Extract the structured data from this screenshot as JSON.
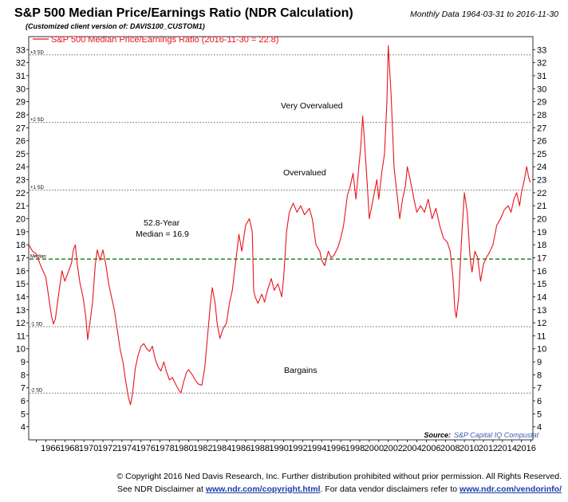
{
  "header": {
    "title": "S&P 500 Median Price/Earnings Ratio (NDR Calculation)",
    "subtitle": "(Customized client version of: DAVIS100_CUSTOM1)",
    "date_range": "Monthly Data 1964-03-31 to 2016-11-30"
  },
  "legend": {
    "label": "S&P 500 Median Price/Earnings Ratio (2016-11-30 = 22.8)"
  },
  "annotations": {
    "very_overvalued": "Very Overvalued",
    "overvalued": "Overvalued",
    "median_line1": "52.8-Year",
    "median_line2": "Median = 16.9",
    "bargains": "Bargains"
  },
  "source": {
    "label": "Source:",
    "value": "S&P Capital IQ Compustat"
  },
  "footer": {
    "line1": "© Copyright 2016 Ned Davis Research, Inc. Further distribution prohibited without prior permission. All Rights Reserved.",
    "line2_prefix": "See NDR Disclaimer at ",
    "line2_link1": "www.ndr.com/copyright.html",
    "line2_mid": ". For data vendor disclaimers refer to ",
    "line2_link2": "www.ndr.com/vendorinfo/"
  },
  "colors": {
    "series": "#e8141c",
    "median": "#1f8a1f",
    "sd_lines": "#333333",
    "source_value": "#3a5fb0"
  },
  "chart_data": {
    "type": "line",
    "title": "S&P 500 Median Price/Earnings Ratio (NDR Calculation)",
    "x_range": [
      1964.2,
      2017.2
    ],
    "ylim": [
      3,
      34
    ],
    "y_ticks": [
      4,
      5,
      6,
      7,
      8,
      9,
      10,
      11,
      12,
      13,
      14,
      15,
      16,
      17,
      18,
      19,
      20,
      21,
      22,
      23,
      24,
      25,
      26,
      27,
      28,
      29,
      30,
      31,
      32,
      33
    ],
    "x_tick_labels": [
      "1966",
      "1968",
      "1970",
      "1972",
      "1974",
      "1976",
      "1978",
      "1980",
      "1982",
      "1984",
      "1986",
      "1988",
      "1990",
      "1992",
      "1994",
      "1996",
      "1998",
      "2000",
      "2002",
      "2004",
      "2006",
      "2008",
      "2010",
      "2012",
      "2014",
      "2016"
    ],
    "grid": false,
    "legend_position": "top-left",
    "reference_lines": [
      {
        "label": "+3 SD",
        "value": 32.6,
        "style": "dotted"
      },
      {
        "label": "+2 SD",
        "value": 27.4,
        "style": "dotted"
      },
      {
        "label": "+1 SD",
        "value": 22.2,
        "style": "dotted"
      },
      {
        "label": "Median",
        "value": 16.9,
        "style": "dashed"
      },
      {
        "label": "-1 SD",
        "value": 11.7,
        "style": "dotted"
      },
      {
        "label": "-2 SD",
        "value": 6.6,
        "style": "dotted"
      }
    ],
    "series": [
      {
        "name": "S&P 500 Median Price/Earnings Ratio (2016-11-30 = 22.8)",
        "points": [
          [
            1964.2,
            18.0
          ],
          [
            1964.6,
            17.5
          ],
          [
            1965.0,
            17.3
          ],
          [
            1965.4,
            16.5
          ],
          [
            1965.7,
            16.0
          ],
          [
            1966.0,
            15.5
          ],
          [
            1966.3,
            14.0
          ],
          [
            1966.6,
            12.5
          ],
          [
            1966.8,
            11.9
          ],
          [
            1967.0,
            12.3
          ],
          [
            1967.4,
            14.5
          ],
          [
            1967.7,
            16.0
          ],
          [
            1968.0,
            15.2
          ],
          [
            1968.3,
            15.8
          ],
          [
            1968.7,
            16.6
          ],
          [
            1968.9,
            17.6
          ],
          [
            1969.1,
            18.0
          ],
          [
            1969.3,
            16.5
          ],
          [
            1969.6,
            15.0
          ],
          [
            1969.9,
            14.0
          ],
          [
            1970.2,
            12.5
          ],
          [
            1970.4,
            10.7
          ],
          [
            1970.6,
            11.8
          ],
          [
            1970.9,
            13.5
          ],
          [
            1971.2,
            16.5
          ],
          [
            1971.4,
            17.6
          ],
          [
            1971.7,
            16.8
          ],
          [
            1972.0,
            17.6
          ],
          [
            1972.3,
            16.5
          ],
          [
            1972.6,
            15.0
          ],
          [
            1972.9,
            14.0
          ],
          [
            1973.2,
            13.0
          ],
          [
            1973.5,
            11.5
          ],
          [
            1973.8,
            10.0
          ],
          [
            1974.1,
            9.0
          ],
          [
            1974.4,
            7.5
          ],
          [
            1974.7,
            6.2
          ],
          [
            1974.9,
            5.7
          ],
          [
            1975.1,
            6.5
          ],
          [
            1975.4,
            8.5
          ],
          [
            1975.7,
            9.5
          ],
          [
            1976.0,
            10.2
          ],
          [
            1976.3,
            10.4
          ],
          [
            1976.6,
            10.0
          ],
          [
            1976.9,
            9.8
          ],
          [
            1977.2,
            10.2
          ],
          [
            1977.5,
            9.2
          ],
          [
            1977.8,
            8.6
          ],
          [
            1978.1,
            8.3
          ],
          [
            1978.4,
            9.0
          ],
          [
            1978.7,
            8.2
          ],
          [
            1979.0,
            7.6
          ],
          [
            1979.3,
            7.8
          ],
          [
            1979.7,
            7.2
          ],
          [
            1980.0,
            6.8
          ],
          [
            1980.2,
            6.6
          ],
          [
            1980.5,
            7.5
          ],
          [
            1980.8,
            8.2
          ],
          [
            1981.0,
            8.4
          ],
          [
            1981.4,
            8.0
          ],
          [
            1981.7,
            7.6
          ],
          [
            1982.0,
            7.3
          ],
          [
            1982.4,
            7.2
          ],
          [
            1982.7,
            8.5
          ],
          [
            1983.0,
            11.0
          ],
          [
            1983.3,
            13.5
          ],
          [
            1983.5,
            14.7
          ],
          [
            1983.8,
            13.5
          ],
          [
            1984.0,
            12.0
          ],
          [
            1984.3,
            10.8
          ],
          [
            1984.6,
            11.5
          ],
          [
            1985.0,
            12.0
          ],
          [
            1985.3,
            13.5
          ],
          [
            1985.6,
            14.5
          ],
          [
            1986.0,
            17.0
          ],
          [
            1986.3,
            18.8
          ],
          [
            1986.6,
            17.5
          ],
          [
            1987.0,
            19.5
          ],
          [
            1987.4,
            20.0
          ],
          [
            1987.7,
            19.0
          ],
          [
            1987.85,
            14.5
          ],
          [
            1988.0,
            14.0
          ],
          [
            1988.3,
            13.5
          ],
          [
            1988.7,
            14.2
          ],
          [
            1989.0,
            13.6
          ],
          [
            1989.3,
            14.5
          ],
          [
            1989.7,
            15.4
          ],
          [
            1990.0,
            14.5
          ],
          [
            1990.4,
            15.0
          ],
          [
            1990.8,
            14.0
          ],
          [
            1991.0,
            15.5
          ],
          [
            1991.3,
            19.0
          ],
          [
            1991.6,
            20.5
          ],
          [
            1992.0,
            21.2
          ],
          [
            1992.4,
            20.5
          ],
          [
            1992.8,
            21.0
          ],
          [
            1993.2,
            20.3
          ],
          [
            1993.7,
            20.8
          ],
          [
            1994.0,
            20.0
          ],
          [
            1994.4,
            18.0
          ],
          [
            1994.8,
            17.5
          ],
          [
            1995.0,
            16.8
          ],
          [
            1995.3,
            16.4
          ],
          [
            1995.7,
            17.5
          ],
          [
            1996.0,
            17.0
          ],
          [
            1996.3,
            17.2
          ],
          [
            1996.7,
            17.8
          ],
          [
            1997.0,
            18.5
          ],
          [
            1997.3,
            19.5
          ],
          [
            1997.7,
            21.8
          ],
          [
            1998.0,
            22.5
          ],
          [
            1998.3,
            23.5
          ],
          [
            1998.6,
            21.5
          ],
          [
            1998.9,
            24.0
          ],
          [
            1999.1,
            25.5
          ],
          [
            1999.3,
            27.9
          ],
          [
            1999.5,
            26.0
          ],
          [
            1999.8,
            22.5
          ],
          [
            2000.0,
            20.0
          ],
          [
            2000.4,
            21.5
          ],
          [
            2000.8,
            23.0
          ],
          [
            2001.0,
            21.5
          ],
          [
            2001.3,
            23.5
          ],
          [
            2001.6,
            25.0
          ],
          [
            2001.85,
            29.0
          ],
          [
            2002.0,
            33.3
          ],
          [
            2002.3,
            29.5
          ],
          [
            2002.6,
            24.0
          ],
          [
            2002.9,
            22.0
          ],
          [
            2003.2,
            20.0
          ],
          [
            2003.5,
            21.5
          ],
          [
            2003.8,
            22.5
          ],
          [
            2004.0,
            24.0
          ],
          [
            2004.3,
            23.0
          ],
          [
            2004.7,
            21.5
          ],
          [
            2005.0,
            20.5
          ],
          [
            2005.4,
            21.0
          ],
          [
            2005.8,
            20.5
          ],
          [
            2006.2,
            21.5
          ],
          [
            2006.6,
            20.0
          ],
          [
            2007.0,
            20.8
          ],
          [
            2007.4,
            19.5
          ],
          [
            2007.8,
            18.5
          ],
          [
            2008.2,
            18.2
          ],
          [
            2008.5,
            17.5
          ],
          [
            2008.8,
            15.5
          ],
          [
            2009.0,
            13.0
          ],
          [
            2009.15,
            12.4
          ],
          [
            2009.4,
            14.0
          ],
          [
            2009.7,
            18.5
          ],
          [
            2010.0,
            22.0
          ],
          [
            2010.3,
            20.5
          ],
          [
            2010.6,
            17.0
          ],
          [
            2010.8,
            15.9
          ],
          [
            2011.1,
            17.5
          ],
          [
            2011.4,
            17.0
          ],
          [
            2011.7,
            15.2
          ],
          [
            2012.0,
            16.5
          ],
          [
            2012.3,
            17.0
          ],
          [
            2012.7,
            17.5
          ],
          [
            2013.0,
            18.0
          ],
          [
            2013.4,
            19.5
          ],
          [
            2013.8,
            20.0
          ],
          [
            2014.2,
            20.7
          ],
          [
            2014.6,
            21.0
          ],
          [
            2014.9,
            20.5
          ],
          [
            2015.2,
            21.5
          ],
          [
            2015.5,
            22.0
          ],
          [
            2015.8,
            21.0
          ],
          [
            2016.0,
            22.0
          ],
          [
            2016.3,
            23.0
          ],
          [
            2016.55,
            24.0
          ],
          [
            2016.75,
            23.2
          ],
          [
            2016.92,
            22.8
          ]
        ]
      }
    ]
  }
}
